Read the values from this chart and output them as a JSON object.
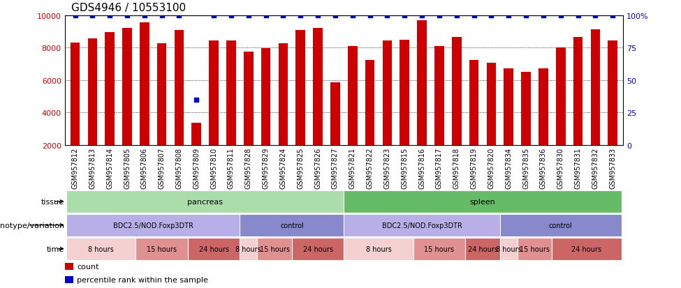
{
  "title": "GDS4946 / 10553100",
  "samples": [
    "GSM957812",
    "GSM957813",
    "GSM957814",
    "GSM957805",
    "GSM957806",
    "GSM957807",
    "GSM957808",
    "GSM957809",
    "GSM957810",
    "GSM957811",
    "GSM957828",
    "GSM957829",
    "GSM957824",
    "GSM957825",
    "GSM957826",
    "GSM957827",
    "GSM957821",
    "GSM957822",
    "GSM957823",
    "GSM957815",
    "GSM957816",
    "GSM957817",
    "GSM957818",
    "GSM957819",
    "GSM957820",
    "GSM957834",
    "GSM957835",
    "GSM957836",
    "GSM957830",
    "GSM957831",
    "GSM957832",
    "GSM957833"
  ],
  "counts": [
    8300,
    8550,
    8950,
    9200,
    9550,
    8250,
    9080,
    3350,
    8450,
    8450,
    7750,
    7950,
    8250,
    9080,
    9200,
    5850,
    8100,
    7250,
    8450,
    8500,
    9700,
    8100,
    8650,
    7250,
    7050,
    6700,
    6500,
    6700,
    8000,
    8650,
    9150,
    8450
  ],
  "percentile_ranks": [
    100,
    100,
    100,
    100,
    100,
    100,
    100,
    35,
    100,
    100,
    100,
    100,
    100,
    100,
    100,
    100,
    100,
    100,
    100,
    100,
    100,
    100,
    100,
    100,
    100,
    100,
    100,
    100,
    100,
    100,
    100,
    100
  ],
  "bar_color": "#cc0000",
  "percentile_color": "#0000cc",
  "ylim_left": [
    2000,
    10000
  ],
  "ylim_right": [
    0,
    100
  ],
  "yticks_left": [
    2000,
    4000,
    6000,
    8000,
    10000
  ],
  "yticks_right": [
    0,
    25,
    50,
    75,
    100
  ],
  "tissue_groups": [
    {
      "label": "pancreas",
      "start": 0,
      "end": 15,
      "color": "#aaddaa"
    },
    {
      "label": "spleen",
      "start": 16,
      "end": 31,
      "color": "#66bb66"
    }
  ],
  "genotype_groups": [
    {
      "label": "BDC2.5/NOD.Foxp3DTR",
      "start": 0,
      "end": 9,
      "color": "#b8aee8"
    },
    {
      "label": "control",
      "start": 10,
      "end": 15,
      "color": "#8888cc"
    },
    {
      "label": "BDC2.5/NOD.Foxp3DTR",
      "start": 16,
      "end": 24,
      "color": "#b8aee8"
    },
    {
      "label": "control",
      "start": 25,
      "end": 31,
      "color": "#8888cc"
    }
  ],
  "time_groups": [
    {
      "label": "8 hours",
      "start": 0,
      "end": 3,
      "color": "#f5d0d0"
    },
    {
      "label": "15 hours",
      "start": 4,
      "end": 6,
      "color": "#e09090"
    },
    {
      "label": "24 hours",
      "start": 7,
      "end": 9,
      "color": "#cc6666"
    },
    {
      "label": "8 hours",
      "start": 10,
      "end": 10,
      "color": "#f5d0d0"
    },
    {
      "label": "15 hours",
      "start": 11,
      "end": 12,
      "color": "#e09090"
    },
    {
      "label": "24 hours",
      "start": 13,
      "end": 15,
      "color": "#cc6666"
    },
    {
      "label": "8 hours",
      "start": 16,
      "end": 19,
      "color": "#f5d0d0"
    },
    {
      "label": "15 hours",
      "start": 20,
      "end": 22,
      "color": "#e09090"
    },
    {
      "label": "24 hours",
      "start": 23,
      "end": 24,
      "color": "#cc6666"
    },
    {
      "label": "8 hours",
      "start": 25,
      "end": 25,
      "color": "#f5d0d0"
    },
    {
      "label": "15 hours",
      "start": 26,
      "end": 27,
      "color": "#e09090"
    },
    {
      "label": "24 hours",
      "start": 28,
      "end": 31,
      "color": "#cc6666"
    }
  ],
  "row_labels": [
    "tissue",
    "genotype/variation",
    "time"
  ],
  "legend_items": [
    {
      "label": "count",
      "color": "#cc0000"
    },
    {
      "label": "percentile rank within the sample",
      "color": "#0000cc"
    }
  ],
  "background_color": "#ffffff",
  "title_fontsize": 11,
  "tick_fontsize": 7,
  "bar_width": 0.55,
  "xtick_bg": "#dddddd"
}
